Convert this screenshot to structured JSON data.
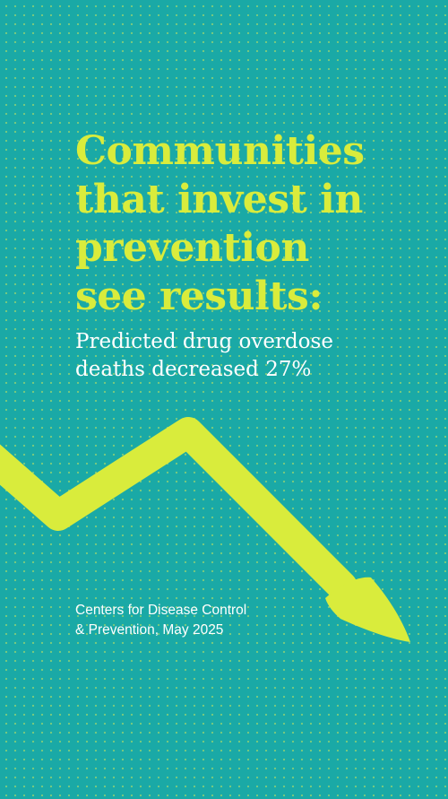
{
  "poster": {
    "headline_lines": [
      "Communities",
      "that invest in",
      "prevention",
      "see results:"
    ],
    "subhead_lines": [
      "Predicted drug overdose",
      "deaths decreased 27%"
    ],
    "source_lines": [
      "Centers for Disease Control",
      "& Prevention, May 2025"
    ],
    "decrease_percent": 27,
    "colors": {
      "background": "#1aa9a6",
      "accent": "#d9ec3c",
      "text": "#ffffff"
    },
    "graphic": "down-trend-arrow-icon"
  }
}
